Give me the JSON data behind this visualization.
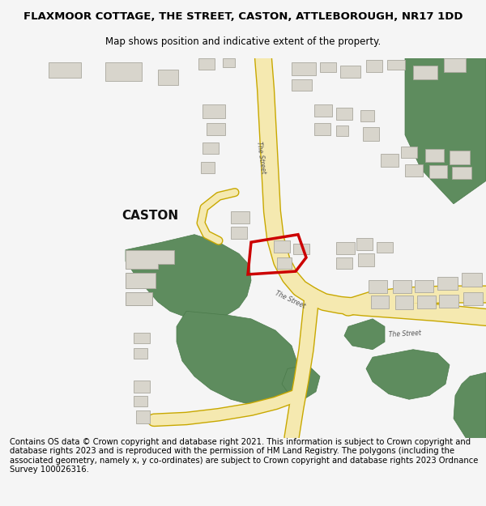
{
  "title": "FLAXMOOR COTTAGE, THE STREET, CASTON, ATTLEBOROUGH, NR17 1DD",
  "subtitle": "Map shows position and indicative extent of the property.",
  "footer": "Contains OS data © Crown copyright and database right 2021. This information is subject to Crown copyright and database rights 2023 and is reproduced with the permission of HM Land Registry. The polygons (including the associated geometry, namely x, y co-ordinates) are subject to Crown copyright and database rights 2023 Ordnance Survey 100026316.",
  "bg_color": "#f5f5f5",
  "map_bg": "#ffffff",
  "road_fill": "#f5e9b0",
  "road_edge": "#c8a800",
  "building_fill": "#d8d5cc",
  "building_edge": "#aaa89e",
  "green_fill": "#5e8c5e",
  "green_edge": "#4a7a4a",
  "red_color": "#cc0000",
  "caston_label": "CASTON",
  "title_fontsize": 9.5,
  "subtitle_fontsize": 8.5,
  "footer_fontsize": 7.2
}
